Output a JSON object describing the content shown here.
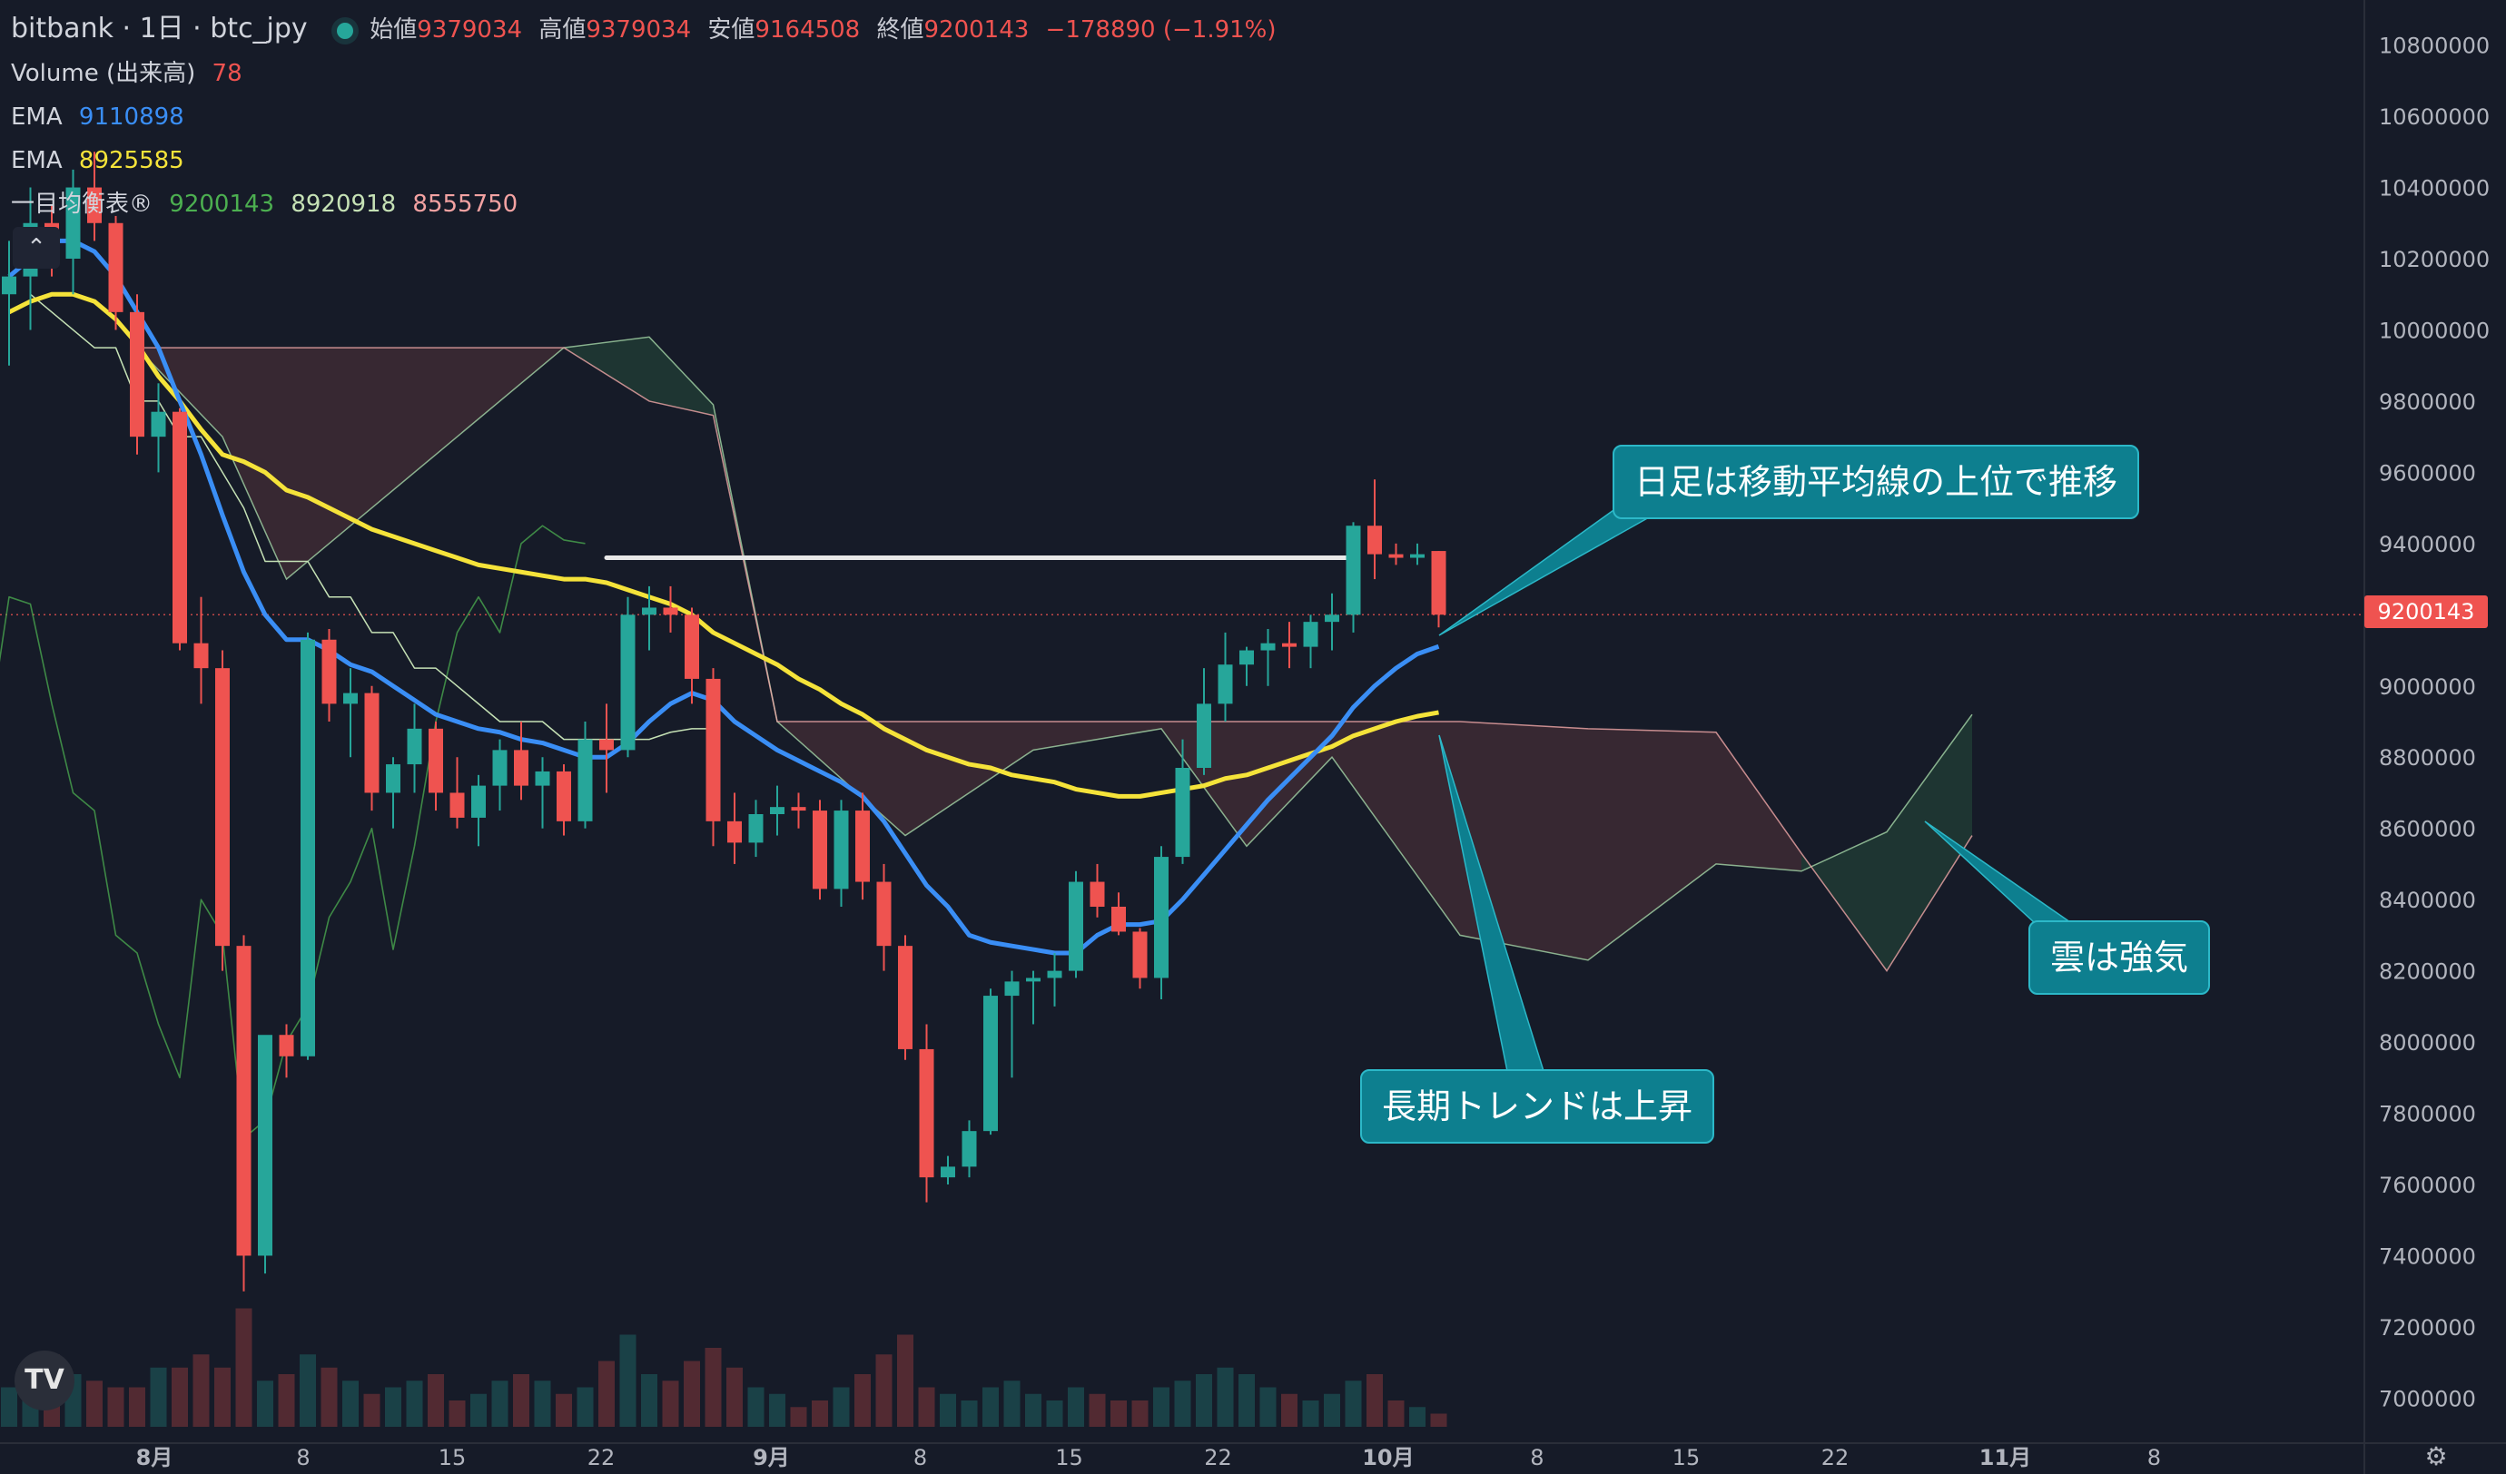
{
  "header": {
    "title": "bitbank · 1日 · btc_jpy",
    "ohlc": {
      "open_label": "始値",
      "open": "9379034",
      "high_label": "高値",
      "high": "9379034",
      "low_label": "安値",
      "low": "9164508",
      "close_label": "終値",
      "close": "9200143",
      "change": "−178890 (−1.91%)"
    }
  },
  "indicators": {
    "volume": {
      "label": "Volume (出来高)",
      "value": "78"
    },
    "ema_fast": {
      "label": "EMA",
      "value": "9110898",
      "color": "#3a8ef5"
    },
    "ema_slow": {
      "label": "EMA",
      "value": "8925585",
      "color": "#f5e33a"
    },
    "ichimoku": {
      "label": "一目均衡表®",
      "v1": "9200143",
      "v2": "8920918",
      "v3": "8555750"
    }
  },
  "colors": {
    "up": "#26a69a",
    "down": "#ef5350",
    "background": "#161b28",
    "cloud_bear": "#3b2a33",
    "cloud_bull": "#1f3833"
  },
  "annotations": [
    {
      "text": "日足は移動平均線の上位で推移"
    },
    {
      "text": "長期トレンドは上昇"
    },
    {
      "text": "雲は強気"
    }
  ],
  "current_price_tag": "9200143",
  "icons": [
    "tradingview-logo-icon",
    "collapse-chevron-icon",
    "settings-icon"
  ],
  "chart_data": {
    "type": "candlestick",
    "symbol": "btc_jpy",
    "exchange": "bitbank",
    "interval": "1日",
    "ylim": [
      6950000,
      10850000
    ],
    "y_ticks": [
      "10800000",
      "10600000",
      "10400000",
      "10200000",
      "10000000",
      "9800000",
      "9600000",
      "9400000",
      "9200000",
      "9000000",
      "8800000",
      "8600000",
      "8400000",
      "8200000",
      "8000000",
      "7800000",
      "7600000",
      "7400000",
      "7200000",
      "7000000"
    ],
    "x_ticks": [
      {
        "label": "8月",
        "bold": true
      },
      {
        "label": "8"
      },
      {
        "label": "15"
      },
      {
        "label": "22"
      },
      {
        "label": "9月",
        "bold": true
      },
      {
        "label": "8"
      },
      {
        "label": "15"
      },
      {
        "label": "22"
      },
      {
        "label": "10月",
        "bold": true
      },
      {
        "label": "8"
      },
      {
        "label": "15"
      },
      {
        "label": "22"
      },
      {
        "label": "11月",
        "bold": true
      },
      {
        "label": "8"
      }
    ],
    "candles": [
      [
        10100000,
        10250000,
        9900000,
        10150000
      ],
      [
        10150000,
        10400000,
        10000000,
        10300000
      ],
      [
        10300000,
        10350000,
        10150000,
        10200000
      ],
      [
        10200000,
        10450000,
        10100000,
        10400000
      ],
      [
        10400000,
        10500000,
        10250000,
        10300000
      ],
      [
        10300000,
        10320000,
        10000000,
        10050000
      ],
      [
        10050000,
        10100000,
        9650000,
        9700000
      ],
      [
        9700000,
        9850000,
        9600000,
        9770000
      ],
      [
        9770000,
        9780000,
        9100000,
        9120000
      ],
      [
        9120000,
        9250000,
        8950000,
        9050000
      ],
      [
        9050000,
        9100000,
        8200000,
        8270000
      ],
      [
        8270000,
        8300000,
        7300000,
        7400000
      ],
      [
        7400000,
        8000000,
        7350000,
        8020000
      ],
      [
        8020000,
        8050000,
        7900000,
        7960000
      ],
      [
        7960000,
        9150000,
        7950000,
        9130000
      ],
      [
        9130000,
        9160000,
        8900000,
        8950000
      ],
      [
        8950000,
        9050000,
        8800000,
        8980000
      ],
      [
        8980000,
        9000000,
        8650000,
        8700000
      ],
      [
        8700000,
        8800000,
        8600000,
        8780000
      ],
      [
        8780000,
        8950000,
        8700000,
        8880000
      ],
      [
        8880000,
        8900000,
        8650000,
        8700000
      ],
      [
        8700000,
        8800000,
        8600000,
        8630000
      ],
      [
        8630000,
        8750000,
        8550000,
        8720000
      ],
      [
        8720000,
        8850000,
        8650000,
        8820000
      ],
      [
        8820000,
        8900000,
        8680000,
        8720000
      ],
      [
        8720000,
        8800000,
        8600000,
        8760000
      ],
      [
        8760000,
        8780000,
        8580000,
        8620000
      ],
      [
        8620000,
        8900000,
        8600000,
        8850000
      ],
      [
        8850000,
        8950000,
        8700000,
        8820000
      ],
      [
        8820000,
        9250000,
        8800000,
        9200000
      ],
      [
        9200000,
        9280000,
        9100000,
        9220000
      ],
      [
        9220000,
        9280000,
        9150000,
        9200000
      ],
      [
        9200000,
        9220000,
        8950000,
        9020000
      ],
      [
        9020000,
        9050000,
        8550000,
        8620000
      ],
      [
        8620000,
        8700000,
        8500000,
        8560000
      ],
      [
        8560000,
        8680000,
        8520000,
        8640000
      ],
      [
        8640000,
        8720000,
        8580000,
        8660000
      ],
      [
        8660000,
        8700000,
        8600000,
        8650000
      ],
      [
        8650000,
        8680000,
        8400000,
        8430000
      ],
      [
        8430000,
        8680000,
        8380000,
        8650000
      ],
      [
        8650000,
        8700000,
        8400000,
        8450000
      ],
      [
        8450000,
        8500000,
        8200000,
        8270000
      ],
      [
        8270000,
        8300000,
        7950000,
        7980000
      ],
      [
        7980000,
        8050000,
        7550000,
        7620000
      ],
      [
        7620000,
        7680000,
        7600000,
        7650000
      ],
      [
        7650000,
        7780000,
        7620000,
        7750000
      ],
      [
        7750000,
        8150000,
        7740000,
        8130000
      ],
      [
        8130000,
        8200000,
        7900000,
        8170000
      ],
      [
        8170000,
        8200000,
        8050000,
        8180000
      ],
      [
        8180000,
        8250000,
        8100000,
        8200000
      ],
      [
        8200000,
        8480000,
        8180000,
        8450000
      ],
      [
        8450000,
        8500000,
        8350000,
        8380000
      ],
      [
        8380000,
        8420000,
        8300000,
        8310000
      ],
      [
        8310000,
        8320000,
        8150000,
        8180000
      ],
      [
        8180000,
        8550000,
        8120000,
        8520000
      ],
      [
        8520000,
        8850000,
        8500000,
        8770000
      ],
      [
        8770000,
        9050000,
        8750000,
        8950000
      ],
      [
        8950000,
        9150000,
        8900000,
        9060000
      ],
      [
        9060000,
        9110000,
        9000000,
        9100000
      ],
      [
        9100000,
        9160000,
        9000000,
        9120000
      ],
      [
        9120000,
        9180000,
        9050000,
        9110000
      ],
      [
        9110000,
        9200000,
        9050000,
        9180000
      ],
      [
        9180000,
        9260000,
        9100000,
        9200000
      ],
      [
        9200000,
        9460000,
        9150000,
        9450000
      ],
      [
        9450000,
        9580000,
        9300000,
        9370000
      ],
      [
        9370000,
        9400000,
        9340000,
        9360000
      ],
      [
        9360000,
        9400000,
        9340000,
        9370000
      ],
      [
        9379034,
        9379034,
        9164508,
        9200143
      ]
    ],
    "ema_fast": [
      10150000,
      10200000,
      10250000,
      10250000,
      10220000,
      10150000,
      10050000,
      9950000,
      9800000,
      9650000,
      9480000,
      9320000,
      9200000,
      9130000,
      9130000,
      9100000,
      9060000,
      9040000,
      9000000,
      8960000,
      8920000,
      8900000,
      8880000,
      8870000,
      8850000,
      8840000,
      8820000,
      8800000,
      8800000,
      8840000,
      8900000,
      8950000,
      8980000,
      8960000,
      8900000,
      8860000,
      8820000,
      8790000,
      8760000,
      8730000,
      8690000,
      8620000,
      8530000,
      8440000,
      8380000,
      8300000,
      8280000,
      8270000,
      8260000,
      8250000,
      8250000,
      8300000,
      8330000,
      8330000,
      8340000,
      8400000,
      8470000,
      8540000,
      8610000,
      8680000,
      8740000,
      8800000,
      8860000,
      8940000,
      9000000,
      9050000,
      9090000,
      9110898
    ],
    "ema_slow": [
      10050000,
      10080000,
      10100000,
      10100000,
      10080000,
      10030000,
      9960000,
      9870000,
      9800000,
      9720000,
      9650000,
      9630000,
      9600000,
      9550000,
      9530000,
      9500000,
      9470000,
      9440000,
      9420000,
      9400000,
      9380000,
      9360000,
      9340000,
      9330000,
      9320000,
      9310000,
      9300000,
      9300000,
      9290000,
      9270000,
      9250000,
      9230000,
      9200000,
      9150000,
      9120000,
      9090000,
      9060000,
      9020000,
      8990000,
      8950000,
      8920000,
      8880000,
      8850000,
      8820000,
      8800000,
      8780000,
      8770000,
      8750000,
      8740000,
      8730000,
      8710000,
      8700000,
      8690000,
      8690000,
      8700000,
      8710000,
      8720000,
      8740000,
      8750000,
      8770000,
      8790000,
      8810000,
      8830000,
      8860000,
      8880000,
      8900000,
      8915000,
      8925585
    ],
    "cloud": [
      {
        "x": 6,
        "a": 9950000,
        "b": 9950000
      },
      {
        "x": 10,
        "a": 9700000,
        "b": 9950000
      },
      {
        "x": 13,
        "a": 9300000,
        "b": 9950000
      },
      {
        "x": 16,
        "a": 9450000,
        "b": 9950000
      },
      {
        "x": 20,
        "a": 9650000,
        "b": 9950000
      },
      {
        "x": 26,
        "a": 9950000,
        "b": 9950000
      },
      {
        "x": 30,
        "a": 9980000,
        "b": 9800000
      },
      {
        "x": 33,
        "a": 9790000,
        "b": 9760000
      },
      {
        "x": 36,
        "a": 8900000,
        "b": 8900000
      },
      {
        "x": 42,
        "a": 8580000,
        "b": 8900000
      },
      {
        "x": 48,
        "a": 8820000,
        "b": 8900000
      },
      {
        "x": 54,
        "a": 8880000,
        "b": 8900000
      },
      {
        "x": 58,
        "a": 8550000,
        "b": 8900000
      },
      {
        "x": 62,
        "a": 8800000,
        "b": 8900000
      },
      {
        "x": 68,
        "a": 8300000,
        "b": 8900000
      },
      {
        "x": 74,
        "a": 8230000,
        "b": 8880000
      },
      {
        "x": 80,
        "a": 8500000,
        "b": 8870000
      },
      {
        "x": 84,
        "a": 8480000,
        "b": 8530000
      },
      {
        "x": 88,
        "a": 8590000,
        "b": 8200000
      },
      {
        "x": 92,
        "a": 8920000,
        "b": 8580000
      }
    ],
    "lagging_span": [
      9000000,
      8650000,
      8900000,
      8850000,
      9250000,
      9230000,
      8950000,
      8700000,
      8650000,
      8300000,
      8250000,
      8050000,
      7900000,
      8400000,
      8300000,
      7730000,
      7780000,
      8000000,
      8100000,
      8350000,
      8450000,
      8600000,
      8260000,
      8550000,
      8900000,
      9150000,
      9250000,
      9150000,
      9400000,
      9450000,
      9410000,
      9400000
    ],
    "base_line": [
      10100000,
      10050000,
      10000000,
      9950000,
      9950000,
      9800000,
      9800000,
      9700000,
      9700000,
      9600000,
      9500000,
      9350000,
      9350000,
      9350000,
      9250000,
      9250000,
      9150000,
      9150000,
      9050000,
      9050000,
      9000000,
      8950000,
      8900000,
      8900000,
      8900000,
      8850000,
      8850000,
      8850000,
      8850000,
      8850000,
      8870000,
      8880000,
      8880000
    ],
    "resistance_line": {
      "price": 9360000,
      "from_index": 28,
      "to_index": 63
    },
    "volume": [
      30,
      40,
      55,
      40,
      35,
      30,
      30,
      45,
      45,
      55,
      45,
      90,
      35,
      40,
      55,
      45,
      35,
      25,
      30,
      35,
      40,
      20,
      25,
      35,
      40,
      35,
      25,
      30,
      50,
      70,
      40,
      35,
      50,
      60,
      45,
      30,
      25,
      15,
      20,
      30,
      40,
      55,
      70,
      30,
      25,
      20,
      30,
      35,
      25,
      20,
      30,
      25,
      20,
      20,
      30,
      35,
      40,
      45,
      40,
      30,
      25,
      20,
      25,
      35,
      40,
      20,
      15,
      10
    ]
  }
}
